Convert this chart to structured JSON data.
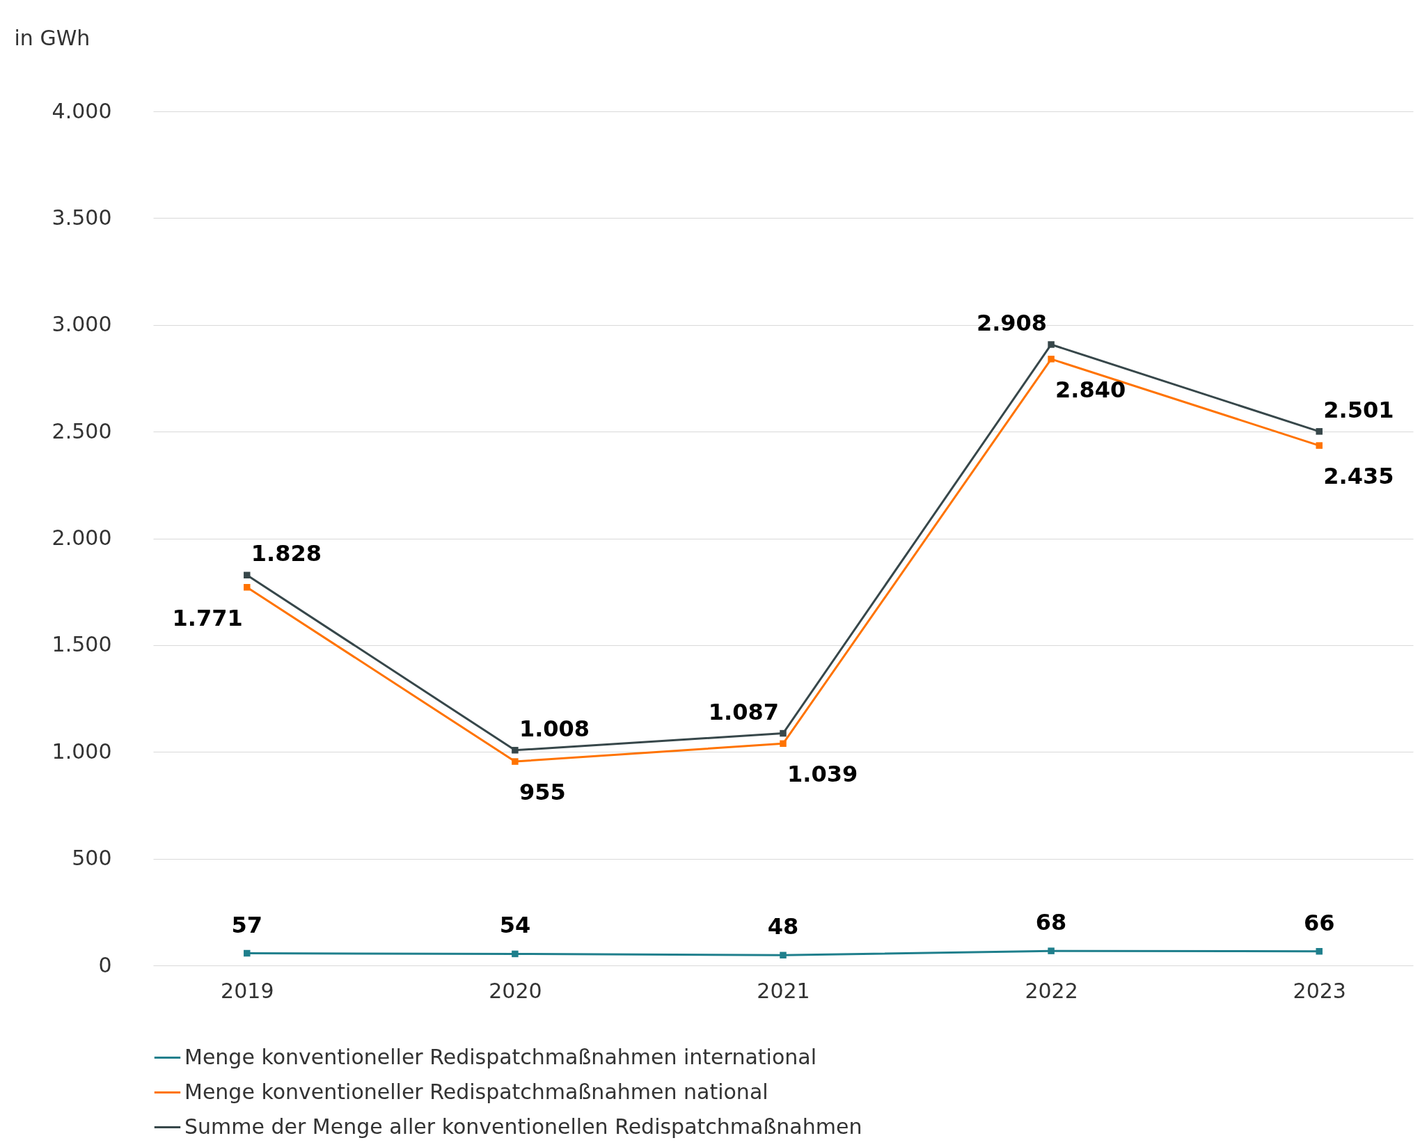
{
  "chart_data": {
    "type": "line",
    "ylabel": "in GWh",
    "categories": [
      "2019",
      "2020",
      "2021",
      "2022",
      "2023"
    ],
    "ylim": [
      0,
      4000
    ],
    "yticks": [
      0,
      500,
      {
        "value": 1000,
        "label": "1.000"
      },
      {
        "value": 1500,
        "label": "1.500"
      },
      {
        "value": 2000,
        "label": "2.000"
      },
      {
        "value": 2500,
        "label": "2.500"
      },
      {
        "value": 3000,
        "label": "3.000"
      },
      {
        "value": 3500,
        "label": "3.500"
      },
      {
        "value": 4000,
        "label": "4.000"
      }
    ],
    "grid": "y",
    "legend": "bottom",
    "marker": "square",
    "line_style": "solid",
    "series": [
      {
        "name": "Menge konventioneller Redispatchmaßnahmen international",
        "color": "#1f7f8c",
        "values": [
          57,
          54,
          48,
          68,
          66
        ],
        "value_labels": [
          "57",
          "54",
          "48",
          "68",
          "66"
        ]
      },
      {
        "name": "Menge konventioneller Redispatchmaßnahmen national",
        "color": "#ff7300",
        "values": [
          1771,
          955,
          1039,
          2840,
          2435
        ],
        "value_labels": [
          "1.771",
          "955",
          "1.039",
          "2.840",
          "2.435"
        ]
      },
      {
        "name": "Summe der Menge aller konventionellen Redispatchmaßnahmen",
        "color": "#37474a",
        "values": [
          1828,
          1008,
          1087,
          2908,
          2501
        ],
        "value_labels": [
          "1.828",
          "1.008",
          "1.087",
          "2.908",
          "2.501"
        ]
      }
    ]
  }
}
